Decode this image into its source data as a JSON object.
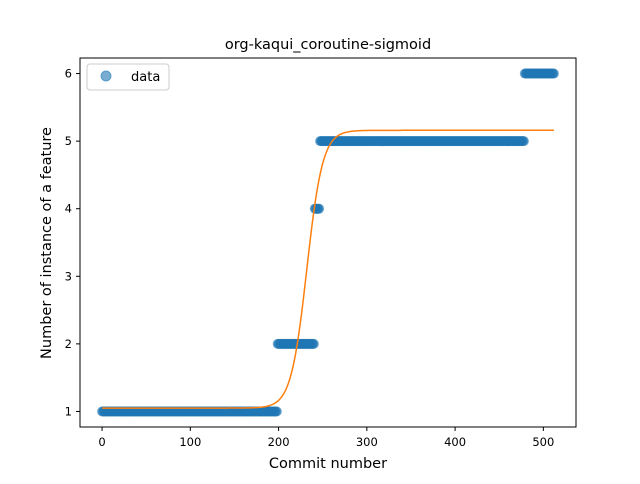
{
  "chart_data": {
    "type": "scatter",
    "title": "org-kaqui_coroutine-sigmoid",
    "xlabel": "Commit number",
    "ylabel": "Number of instance of a feature",
    "xlim": [
      -25,
      537
    ],
    "ylim": [
      0.77,
      6.23
    ],
    "xticks": [
      0,
      100,
      200,
      300,
      400,
      500
    ],
    "yticks": [
      1,
      2,
      3,
      4,
      5,
      6
    ],
    "grid": false,
    "legend": {
      "position": "top-left",
      "entries": [
        "data"
      ]
    },
    "colors": {
      "data": "#1f77b4",
      "fit": "#ff7f0e"
    },
    "series": [
      {
        "name": "data",
        "kind": "scatter",
        "segments": [
          {
            "x_start": 0,
            "x_end": 198,
            "y": 1
          },
          {
            "x_start": 199,
            "x_end": 240,
            "y": 2
          },
          {
            "x_start": 241,
            "x_end": 246,
            "y": 4
          },
          {
            "x_start": 247,
            "x_end": 478,
            "y": 5
          },
          {
            "x_start": 479,
            "x_end": 512,
            "y": 6
          }
        ]
      },
      {
        "kind": "line",
        "model": "sigmoid",
        "params": {
          "lower": 1.05,
          "upper": 5.16,
          "midpoint": 232,
          "scale": 9
        },
        "x_range": [
          0,
          512
        ]
      }
    ]
  }
}
